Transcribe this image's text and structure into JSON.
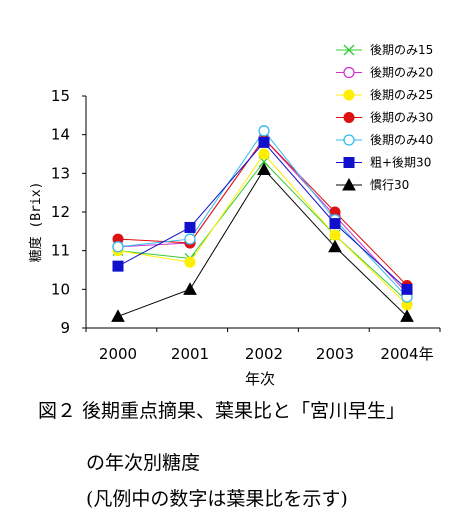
{
  "chart_data": {
    "type": "line",
    "categories": [
      "2000",
      "2001",
      "2002",
      "2003",
      "2004年"
    ],
    "xlabel": "年次",
    "ylabel": "糖度 (Brix)",
    "ylim": [
      9,
      15
    ],
    "yticks": [
      "9",
      "10",
      "11",
      "12",
      "13",
      "14",
      "15"
    ],
    "grid": false,
    "legend_position": "top-right",
    "series": [
      {
        "name": "後期のみ15",
        "color": "#33cc33",
        "marker": "x",
        "values": [
          11.0,
          10.8,
          13.3,
          11.4,
          9.7
        ]
      },
      {
        "name": "後期のみ20",
        "color": "#cc33cc",
        "marker": "circle-open",
        "values": [
          11.1,
          11.2,
          13.9,
          11.9,
          9.9
        ]
      },
      {
        "name": "後期のみ25",
        "color": "#ffee00",
        "marker": "circle-filled",
        "values": [
          11.0,
          10.7,
          13.5,
          11.4,
          9.6
        ]
      },
      {
        "name": "後期のみ30",
        "color": "#dd1111",
        "marker": "circle-filled",
        "values": [
          11.3,
          11.2,
          13.9,
          12.0,
          10.1
        ]
      },
      {
        "name": "後期のみ40",
        "color": "#33bbee",
        "marker": "circle-open",
        "values": [
          11.1,
          11.3,
          14.1,
          11.8,
          9.8
        ]
      },
      {
        "name": "粗+後期30",
        "color": "#1111cc",
        "marker": "square-filled",
        "values": [
          10.6,
          11.6,
          13.8,
          11.7,
          10.0
        ]
      },
      {
        "name": "慣行30",
        "color": "#000000",
        "marker": "triangle-filled",
        "values": [
          9.3,
          10.0,
          13.1,
          11.1,
          9.3
        ]
      }
    ]
  },
  "caption": {
    "line1": "図２ 後期重点摘果、葉果比と「宮川早生」",
    "line2": "の年次別糖度",
    "line3": "(凡例中の数字は葉果比を示す)"
  }
}
